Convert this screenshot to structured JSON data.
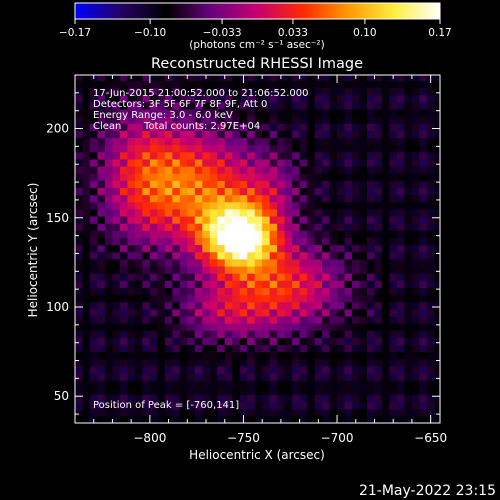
{
  "chart_data": {
    "type": "heatmap",
    "title": "Reconstructed RHESSI Image",
    "xlabel": "Heliocentric X (arcsec)",
    "ylabel": "Heliocentric Y (arcsec)",
    "xlim": [
      -840,
      -645
    ],
    "ylim": [
      35,
      230
    ],
    "x_ticks": [
      -800,
      -750,
      -700,
      -650
    ],
    "x_tick_labels": [
      "−800",
      "−750",
      "−700",
      "−650"
    ],
    "y_ticks": [
      50,
      100,
      150,
      200
    ],
    "y_tick_labels": [
      "50",
      "100",
      "150",
      "200"
    ],
    "colorbar": {
      "min": -0.17,
      "max": 0.17,
      "ticks": [
        -0.17,
        -0.1,
        -0.033,
        0.033,
        0.1,
        0.17
      ],
      "tick_labels": [
        "−0.17",
        "−0.10",
        "−0.033",
        "0.033",
        "0.10",
        "0.17"
      ],
      "units": "(photons cm⁻² s⁻¹ asec⁻²)",
      "stops": [
        "#0000ff",
        "#240066",
        "#000000",
        "#6a0080",
        "#c8006e",
        "#ff2a00",
        "#ff9a00",
        "#ffee40",
        "#ffffff"
      ]
    },
    "background_value": -0.09,
    "sources": [
      {
        "x": -752,
        "y": 140,
        "sx": 14,
        "sy": 13,
        "amp": 0.27
      },
      {
        "x": -775,
        "y": 168,
        "sx": 22,
        "sy": 22,
        "amp": 0.14
      },
      {
        "x": -805,
        "y": 175,
        "sx": 16,
        "sy": 26,
        "amp": 0.09
      },
      {
        "x": -728,
        "y": 112,
        "sx": 22,
        "sy": 16,
        "amp": 0.12
      },
      {
        "x": -760,
        "y": 98,
        "sx": 18,
        "sy": 12,
        "amp": 0.07
      },
      {
        "x": -735,
        "y": 168,
        "sx": 12,
        "sy": 14,
        "amp": 0.05
      }
    ],
    "peak": {
      "x": -760,
      "y": 141
    }
  },
  "annotations": {
    "time": "17-Jun-2015 21:00:52.000 to 21:06:52.000",
    "detectors": "Detectors: 3F 5F 6F 7F 8F 9F, Att 0",
    "energy": "Energy Range: 3.0 - 6.0 keV",
    "clean": "Clean",
    "counts": "Total counts: 2.97E+04",
    "peak": "Position of Peak = [-760,141]"
  },
  "footer": {
    "date": "21-May-2022 23:15"
  }
}
